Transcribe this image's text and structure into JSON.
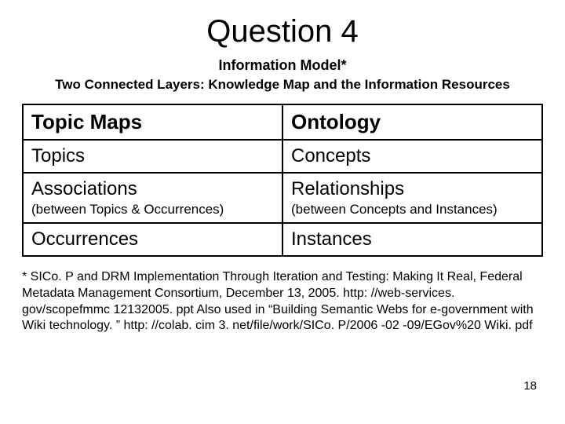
{
  "title": "Question 4",
  "subtitle1": "Information Model*",
  "subtitle2": "Two Connected Layers: Knowledge Map and the Information Resources",
  "table": {
    "r0c0": "Topic Maps",
    "r0c1": "Ontology",
    "r1c0": "Topics",
    "r1c1": "Concepts",
    "r2c0_main": "Associations",
    "r2c0_sub": "(between Topics & Occurrences)",
    "r2c1_main": "Relationships",
    "r2c1_sub": "(between Concepts and Instances)",
    "r3c0": "Occurrences",
    "r3c1": "Instances"
  },
  "footnote": "* SICo. P and DRM Implementation Through Iteration and Testing: Making It Real, Federal Metadata Management Consortium, December 13, 2005. http: //web-services. gov/scopefmmc 12132005. ppt\nAlso used in “Building Semantic Webs for e-government with Wiki technology. ” http: //colab. cim 3. net/file/work/SICo. P/2006 -02 -09/EGov%20 Wiki. pdf",
  "pagenum": "18",
  "style": {
    "background_color": "#ffffff",
    "text_color": "#000000",
    "border_color": "#000000",
    "title_fontsize": 40,
    "subtitle_fontsize": 18,
    "header_fontsize": 26,
    "cell_fontsize": 24,
    "subcell_fontsize": 17,
    "footnote_fontsize": 16,
    "font_family": "Arial"
  }
}
